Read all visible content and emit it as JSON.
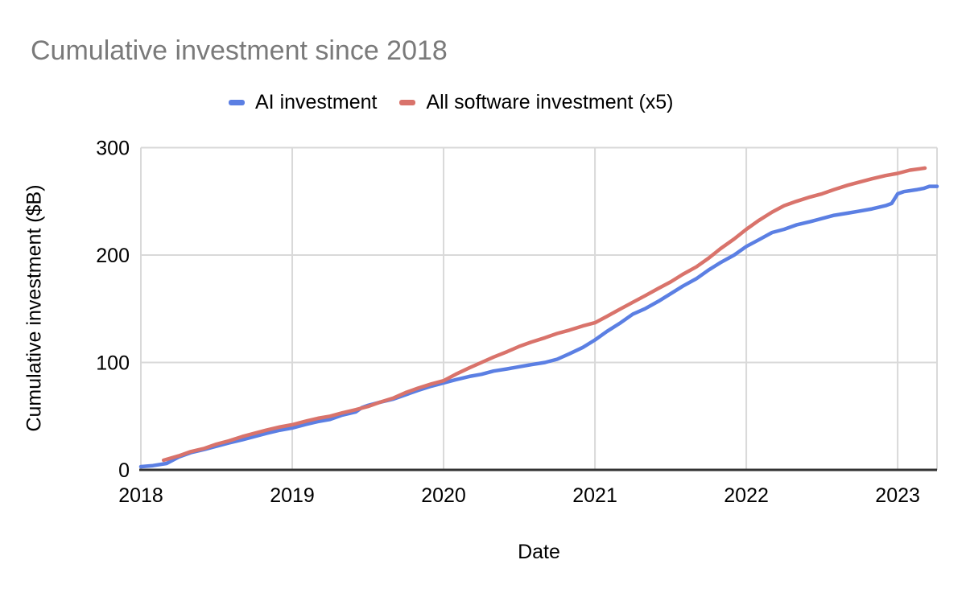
{
  "title": "Cumulative investment since 2018",
  "legend": {
    "position": "top",
    "items": [
      {
        "label": "AI investment",
        "color": "#5b7fe3"
      },
      {
        "label": "All software investment (x5)",
        "color": "#d9736b"
      }
    ]
  },
  "axes": {
    "x": {
      "label": "Date",
      "ticks": [
        "2018",
        "2019",
        "2020",
        "2021",
        "2022",
        "2023"
      ],
      "min": 2018,
      "max": 2023.26
    },
    "y": {
      "label": "Cumulative investment ($B)",
      "ticks": [
        "0",
        "100",
        "200",
        "300"
      ],
      "min": 0,
      "max": 300
    }
  },
  "colors": {
    "title_text": "#7a7a7a",
    "axis_text": "#000000",
    "gridline": "#d9d9d9",
    "baseline_axis": "#333333",
    "series_ai": "#5b7fe3",
    "series_software": "#d9736b",
    "background": "#ffffff"
  },
  "chart_data": {
    "type": "line",
    "title": "Cumulative investment since 2018",
    "xlabel": "Date",
    "ylabel": "Cumulative investment ($B)",
    "xlim": [
      2018,
      2023.26
    ],
    "ylim": [
      0,
      300
    ],
    "x_ticks": [
      2018,
      2019,
      2020,
      2021,
      2022,
      2023
    ],
    "y_ticks": [
      0,
      100,
      200,
      300
    ],
    "grid": true,
    "legend_position": "top",
    "series": [
      {
        "name": "AI investment",
        "color": "#5b7fe3",
        "points": [
          [
            2018.0,
            3
          ],
          [
            2018.08,
            4
          ],
          [
            2018.17,
            6
          ],
          [
            2018.25,
            12
          ],
          [
            2018.33,
            16
          ],
          [
            2018.42,
            19
          ],
          [
            2018.5,
            22
          ],
          [
            2018.58,
            25
          ],
          [
            2018.67,
            28
          ],
          [
            2018.75,
            31
          ],
          [
            2018.83,
            34
          ],
          [
            2018.92,
            37
          ],
          [
            2019.0,
            39
          ],
          [
            2019.08,
            42
          ],
          [
            2019.17,
            45
          ],
          [
            2019.25,
            47
          ],
          [
            2019.33,
            51
          ],
          [
            2019.42,
            54
          ],
          [
            2019.46,
            58
          ],
          [
            2019.5,
            60
          ],
          [
            2019.58,
            63
          ],
          [
            2019.67,
            66
          ],
          [
            2019.75,
            70
          ],
          [
            2019.83,
            74
          ],
          [
            2019.92,
            78
          ],
          [
            2020.0,
            81
          ],
          [
            2020.08,
            84
          ],
          [
            2020.17,
            87
          ],
          [
            2020.25,
            89
          ],
          [
            2020.33,
            92
          ],
          [
            2020.42,
            94
          ],
          [
            2020.5,
            96
          ],
          [
            2020.58,
            98
          ],
          [
            2020.67,
            100
          ],
          [
            2020.75,
            103
          ],
          [
            2020.83,
            108
          ],
          [
            2020.92,
            114
          ],
          [
            2021.0,
            121
          ],
          [
            2021.08,
            129
          ],
          [
            2021.17,
            137
          ],
          [
            2021.25,
            145
          ],
          [
            2021.33,
            150
          ],
          [
            2021.42,
            157
          ],
          [
            2021.5,
            164
          ],
          [
            2021.58,
            171
          ],
          [
            2021.67,
            178
          ],
          [
            2021.75,
            186
          ],
          [
            2021.83,
            193
          ],
          [
            2021.92,
            200
          ],
          [
            2022.0,
            208
          ],
          [
            2022.08,
            214
          ],
          [
            2022.17,
            221
          ],
          [
            2022.25,
            224
          ],
          [
            2022.33,
            228
          ],
          [
            2022.42,
            231
          ],
          [
            2022.5,
            234
          ],
          [
            2022.58,
            237
          ],
          [
            2022.67,
            239
          ],
          [
            2022.75,
            241
          ],
          [
            2022.83,
            243
          ],
          [
            2022.92,
            246
          ],
          [
            2022.96,
            248
          ],
          [
            2023.0,
            257
          ],
          [
            2023.04,
            259
          ],
          [
            2023.13,
            261
          ],
          [
            2023.17,
            262
          ],
          [
            2023.21,
            264
          ],
          [
            2023.26,
            264
          ]
        ]
      },
      {
        "name": "All software investment (x5)",
        "color": "#d9736b",
        "points": [
          [
            2018.15,
            9
          ],
          [
            2018.25,
            13
          ],
          [
            2018.33,
            17
          ],
          [
            2018.42,
            20
          ],
          [
            2018.5,
            24
          ],
          [
            2018.58,
            27
          ],
          [
            2018.67,
            31
          ],
          [
            2018.75,
            34
          ],
          [
            2018.83,
            37
          ],
          [
            2018.92,
            40
          ],
          [
            2019.0,
            42
          ],
          [
            2019.08,
            45
          ],
          [
            2019.17,
            48
          ],
          [
            2019.25,
            50
          ],
          [
            2019.33,
            53
          ],
          [
            2019.42,
            56
          ],
          [
            2019.5,
            59
          ],
          [
            2019.58,
            63
          ],
          [
            2019.67,
            67
          ],
          [
            2019.75,
            72
          ],
          [
            2019.83,
            76
          ],
          [
            2019.92,
            80
          ],
          [
            2020.0,
            83
          ],
          [
            2020.08,
            89
          ],
          [
            2020.17,
            95
          ],
          [
            2020.25,
            100
          ],
          [
            2020.33,
            105
          ],
          [
            2020.42,
            110
          ],
          [
            2020.5,
            115
          ],
          [
            2020.58,
            119
          ],
          [
            2020.67,
            123
          ],
          [
            2020.75,
            127
          ],
          [
            2020.83,
            130
          ],
          [
            2020.92,
            134
          ],
          [
            2021.0,
            137
          ],
          [
            2021.08,
            143
          ],
          [
            2021.17,
            150
          ],
          [
            2021.25,
            156
          ],
          [
            2021.33,
            162
          ],
          [
            2021.42,
            169
          ],
          [
            2021.5,
            175
          ],
          [
            2021.58,
            182
          ],
          [
            2021.67,
            189
          ],
          [
            2021.75,
            197
          ],
          [
            2021.83,
            206
          ],
          [
            2021.92,
            215
          ],
          [
            2022.0,
            224
          ],
          [
            2022.08,
            232
          ],
          [
            2022.17,
            240
          ],
          [
            2022.25,
            246
          ],
          [
            2022.33,
            250
          ],
          [
            2022.42,
            254
          ],
          [
            2022.5,
            257
          ],
          [
            2022.58,
            261
          ],
          [
            2022.67,
            265
          ],
          [
            2022.75,
            268
          ],
          [
            2022.83,
            271
          ],
          [
            2022.92,
            274
          ],
          [
            2023.0,
            276
          ],
          [
            2023.08,
            279
          ],
          [
            2023.18,
            281
          ]
        ]
      }
    ]
  }
}
